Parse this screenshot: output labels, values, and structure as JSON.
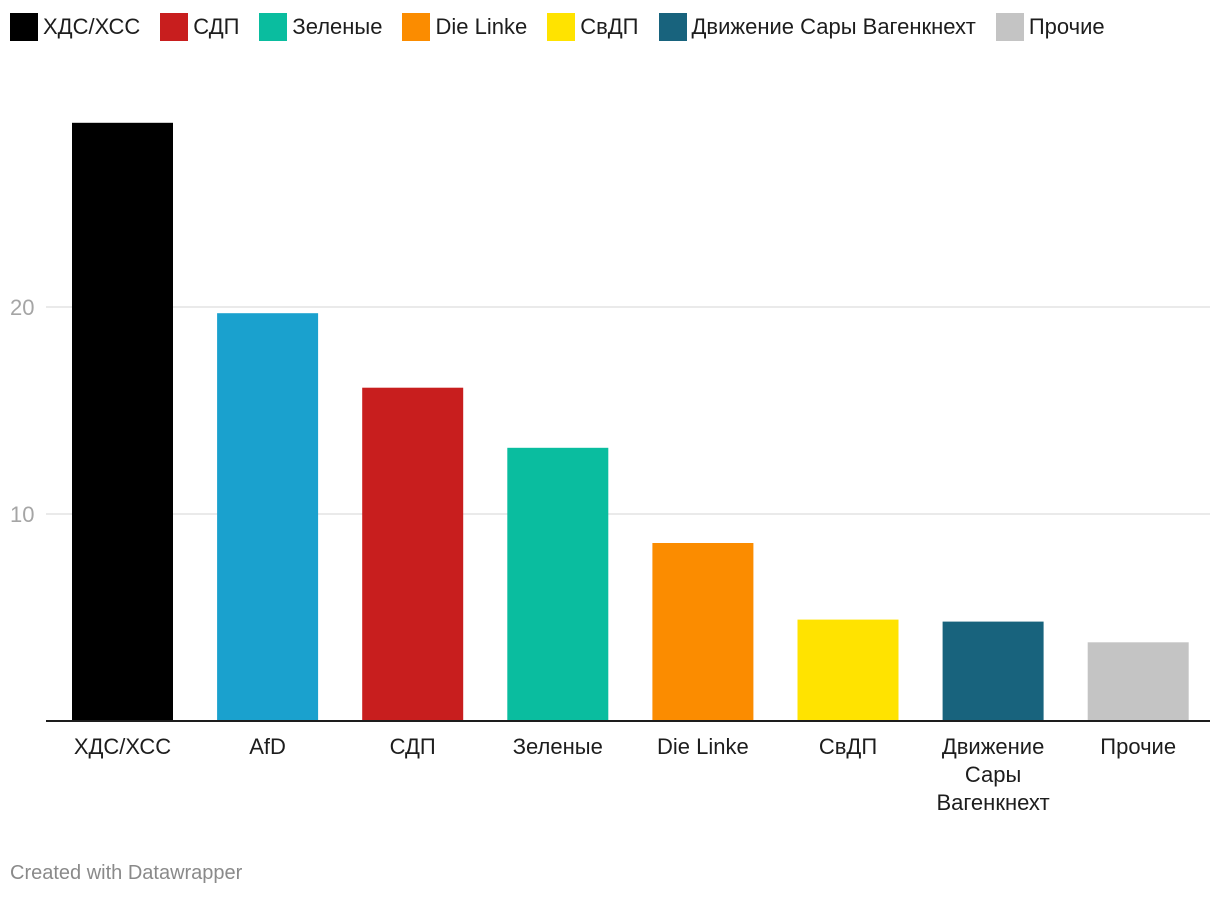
{
  "chart_data": {
    "type": "bar",
    "categories": [
      "ХДС/ХСС",
      "AfD",
      "СДП",
      "Зеленые",
      "Die Linke",
      "СвДП",
      "Движение Сары Вагенкнехт",
      "Прочие"
    ],
    "values": [
      28.9,
      19.7,
      16.1,
      13.2,
      8.6,
      4.9,
      4.8,
      3.8
    ],
    "colors": [
      "#000000",
      "#1aa1ce",
      "#c81e1e",
      "#0abd9f",
      "#fb8c00",
      "#ffe300",
      "#18637d",
      "#c4c4c4"
    ],
    "yticks": [
      10,
      20
    ],
    "ylim": [
      0,
      29
    ],
    "grid": true,
    "legend": {
      "placement": "top-left",
      "entries": [
        {
          "label": "ХДС/ХСС",
          "color": "#000000"
        },
        {
          "label": "СДП",
          "color": "#c81e1e"
        },
        {
          "label": "Зеленые",
          "color": "#0abd9f"
        },
        {
          "label": "Die Linke",
          "color": "#fb8c00"
        },
        {
          "label": "СвДП",
          "color": "#ffe300"
        },
        {
          "label": "Движение Сары Вагенкнехт",
          "color": "#18637d"
        },
        {
          "label": "Прочие",
          "color": "#c4c4c4"
        }
      ]
    }
  },
  "footer": {
    "credit": "Created with Datawrapper"
  }
}
